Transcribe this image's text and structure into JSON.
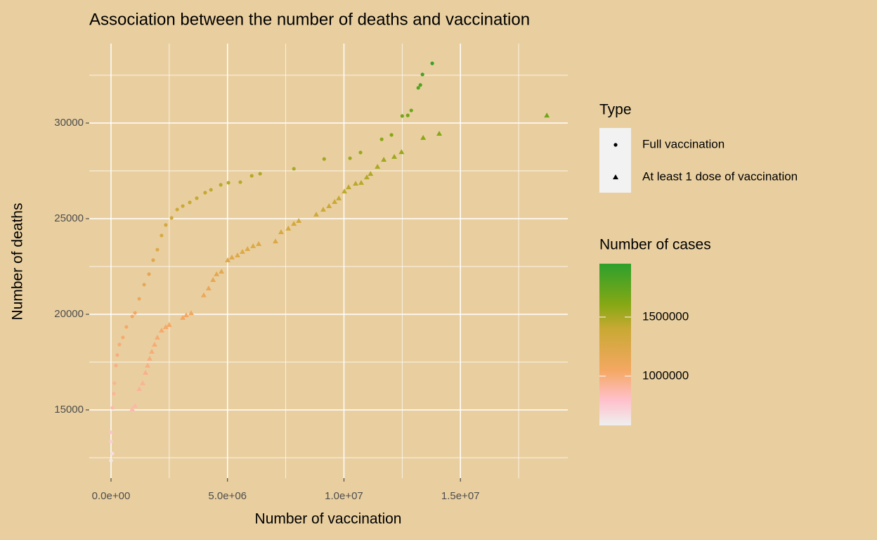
{
  "chart_data": {
    "type": "scatter",
    "title": "Association between the number of deaths and vaccination",
    "x_label": "Number of vaccination",
    "y_label": "Number of deaths",
    "xlim": [
      -935000,
      19610000
    ],
    "ylim": [
      11434,
      34154
    ],
    "xticks": [
      {
        "value": 0,
        "label": "0.0e+00"
      },
      {
        "value": 5000000,
        "label": "5.0e+06"
      },
      {
        "value": 10000000,
        "label": "1.0e+07"
      },
      {
        "value": 15000000,
        "label": "1.5e+07"
      }
    ],
    "yticks": [
      15000,
      20000,
      25000,
      30000
    ],
    "grid": true,
    "shape_legend_title": "Type",
    "color_legend_title": "Number of cases",
    "colorlim": [
      583000,
      1952000
    ],
    "colorticks": [
      1000000,
      1500000
    ],
    "color_stops": [
      {
        "value": 583000,
        "color": "#efefef"
      },
      {
        "value": 800000,
        "color": "#ffc0cb"
      },
      {
        "value": 1050000,
        "color": "#f4a862"
      },
      {
        "value": 1400000,
        "color": "#c9a934"
      },
      {
        "value": 1600000,
        "color": "#88a814"
      },
      {
        "value": 1952000,
        "color": "#2ca02c"
      }
    ],
    "series": [
      {
        "name": "Full vaccination",
        "shape": "circle",
        "x": [
          0,
          60000,
          0,
          0,
          60000,
          120000,
          150000,
          210000,
          270000,
          360000,
          510000,
          660000,
          910000,
          1030000,
          1210000,
          1420000,
          1630000,
          1810000,
          1990000,
          2170000,
          2350000,
          2600000,
          2840000,
          3080000,
          3380000,
          3680000,
          4040000,
          4290000,
          4710000,
          5040000,
          5550000,
          6040000,
          6400000,
          7850000,
          9150000,
          10260000,
          10710000,
          11620000,
          12040000,
          12500000,
          12740000,
          12890000,
          13190000,
          13280000,
          13370000,
          13790000
        ],
        "values": [
          12355,
          12720,
          13350,
          13830,
          15110,
          15850,
          16400,
          17320,
          17870,
          18420,
          18790,
          19340,
          19890,
          20075,
          20810,
          21550,
          22100,
          22830,
          23380,
          24120,
          24670,
          25040,
          25480,
          25660,
          25850,
          26070,
          26360,
          26510,
          26770,
          26880,
          26910,
          27240,
          27350,
          27610,
          28120,
          28160,
          28460,
          29150,
          29380,
          30370,
          30400,
          30660,
          31840,
          31990,
          32540,
          33120
        ],
        "cases": [
          605000,
          660000,
          730000,
          785000,
          875000,
          910000,
          930000,
          970000,
          990000,
          1010000,
          1020000,
          1035000,
          1055000,
          1065000,
          1105000,
          1145000,
          1175000,
          1210000,
          1240000,
          1275000,
          1310000,
          1340000,
          1370000,
          1380000,
          1390000,
          1405000,
          1420000,
          1430000,
          1445000,
          1455000,
          1455000,
          1475000,
          1480000,
          1495000,
          1525000,
          1530000,
          1550000,
          1590000,
          1605000,
          1680000,
          1680000,
          1700000,
          1800000,
          1810000,
          1855000,
          1900000
        ]
      },
      {
        "name": "At least 1 dose of vaccination",
        "shape": "triangle",
        "x": [
          910000,
          1030000,
          1210000,
          1360000,
          1480000,
          1570000,
          1660000,
          1750000,
          1870000,
          1990000,
          2170000,
          2350000,
          2500000,
          3080000,
          3230000,
          3440000,
          3980000,
          4190000,
          4380000,
          4530000,
          4740000,
          5010000,
          5190000,
          5430000,
          5640000,
          5860000,
          6100000,
          6340000,
          7060000,
          7300000,
          7610000,
          7850000,
          8060000,
          8810000,
          9110000,
          9360000,
          9600000,
          9780000,
          10020000,
          10200000,
          10500000,
          10740000,
          10980000,
          11140000,
          11440000,
          11710000,
          12160000,
          12470000,
          13400000,
          14090000,
          18710000
        ],
        "values": [
          15040,
          15220,
          16100,
          16400,
          16950,
          17320,
          17690,
          18050,
          18420,
          18790,
          19160,
          19340,
          19450,
          19820,
          19960,
          20070,
          21000,
          21360,
          21800,
          22100,
          22240,
          22830,
          22980,
          23090,
          23270,
          23420,
          23570,
          23680,
          23820,
          24300,
          24490,
          24740,
          24890,
          25220,
          25480,
          25660,
          25880,
          26070,
          26430,
          26650,
          26840,
          26880,
          27170,
          27350,
          27720,
          28090,
          28240,
          28490,
          29230,
          29450,
          30400
        ],
        "cases": [
          870000,
          880000,
          920000,
          930000,
          955000,
          970000,
          985000,
          1000000,
          1010000,
          1020000,
          1030000,
          1035000,
          1040000,
          1055000,
          1060000,
          1065000,
          1115000,
          1135000,
          1160000,
          1175000,
          1180000,
          1210000,
          1220000,
          1225000,
          1235000,
          1240000,
          1250000,
          1255000,
          1260000,
          1290000,
          1300000,
          1315000,
          1330000,
          1355000,
          1370000,
          1380000,
          1395000,
          1405000,
          1425000,
          1435000,
          1450000,
          1455000,
          1470000,
          1480000,
          1500000,
          1525000,
          1535000,
          1550000,
          1595000,
          1610000,
          1680000
        ]
      }
    ]
  }
}
